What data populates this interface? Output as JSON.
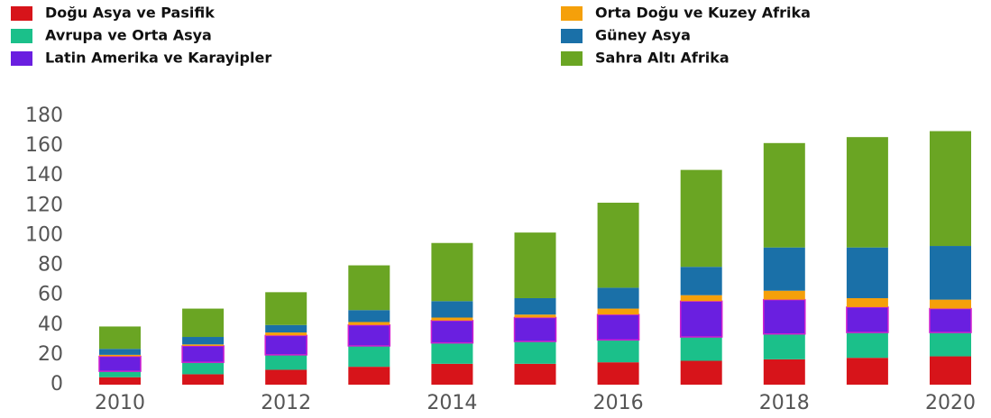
{
  "chart_data": {
    "type": "stacked_bar",
    "categories": [
      "2010",
      null,
      "2012",
      null,
      "2014",
      null,
      "2016",
      null,
      "2018",
      null,
      "2020"
    ],
    "series": [
      {
        "name": "Doğu Asya ve Pasifik",
        "color": "#d7141a",
        "values": [
          5,
          7,
          10,
          12,
          14,
          14,
          15,
          16,
          17,
          18,
          19
        ]
      },
      {
        "name": "Avrupa ve Orta Asya",
        "color": "#1bc08a",
        "values": [
          4,
          8,
          10,
          14,
          14,
          15,
          15,
          16,
          17,
          17,
          16
        ]
      },
      {
        "name": "Latin Amerika ve Karayipler",
        "color": "#6a1fe0",
        "values": [
          10,
          11,
          13,
          14,
          15,
          16,
          17,
          24,
          23,
          17,
          16
        ]
      },
      {
        "name": "Orta Doğu ve Kuzey Afrika",
        "color": "#f5a00a",
        "values": [
          1,
          1,
          2,
          2,
          2,
          2,
          4,
          4,
          6,
          6,
          6
        ]
      },
      {
        "name": "Güney Asya",
        "color": "#1a70a8",
        "values": [
          4,
          5,
          5,
          8,
          11,
          11,
          14,
          19,
          29,
          34,
          36
        ]
      },
      {
        "name": "Sahra Altı Afrika",
        "color": "#6aa523",
        "values": [
          15,
          19,
          22,
          30,
          39,
          44,
          57,
          65,
          70,
          74,
          77
        ]
      }
    ],
    "ylim": [
      0,
      180
    ],
    "yticks": [
      0,
      20,
      40,
      60,
      80,
      100,
      120,
      140,
      160,
      180
    ],
    "grid": false
  }
}
